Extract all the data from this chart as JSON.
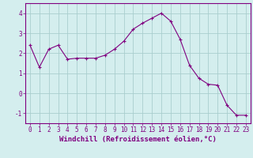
{
  "x": [
    0,
    1,
    2,
    3,
    4,
    5,
    6,
    7,
    8,
    9,
    10,
    11,
    12,
    13,
    14,
    15,
    16,
    17,
    18,
    19,
    20,
    21,
    22,
    23
  ],
  "y": [
    2.4,
    1.3,
    2.2,
    2.4,
    1.7,
    1.75,
    1.75,
    1.75,
    1.9,
    2.2,
    2.6,
    3.2,
    3.5,
    3.75,
    4.0,
    3.6,
    2.7,
    1.4,
    0.75,
    0.45,
    0.4,
    -0.6,
    -1.1,
    -1.1
  ],
  "line_color": "#800080",
  "marker": "+",
  "marker_size": 3.5,
  "bg_color": "#d4eeee",
  "grid_color": "#aacece",
  "xlabel": "Windchill (Refroidissement éolien,°C)",
  "xlim": [
    -0.5,
    23.5
  ],
  "ylim": [
    -1.5,
    4.5
  ],
  "yticks": [
    -1,
    0,
    1,
    2,
    3,
    4
  ],
  "xticks": [
    0,
    1,
    2,
    3,
    4,
    5,
    6,
    7,
    8,
    9,
    10,
    11,
    12,
    13,
    14,
    15,
    16,
    17,
    18,
    19,
    20,
    21,
    22,
    23
  ],
  "tick_color": "#800080",
  "label_fontsize": 6.5,
  "tick_fontsize": 5.5,
  "spine_color": "#800080",
  "linewidth": 0.8,
  "markeredgewidth": 0.8
}
